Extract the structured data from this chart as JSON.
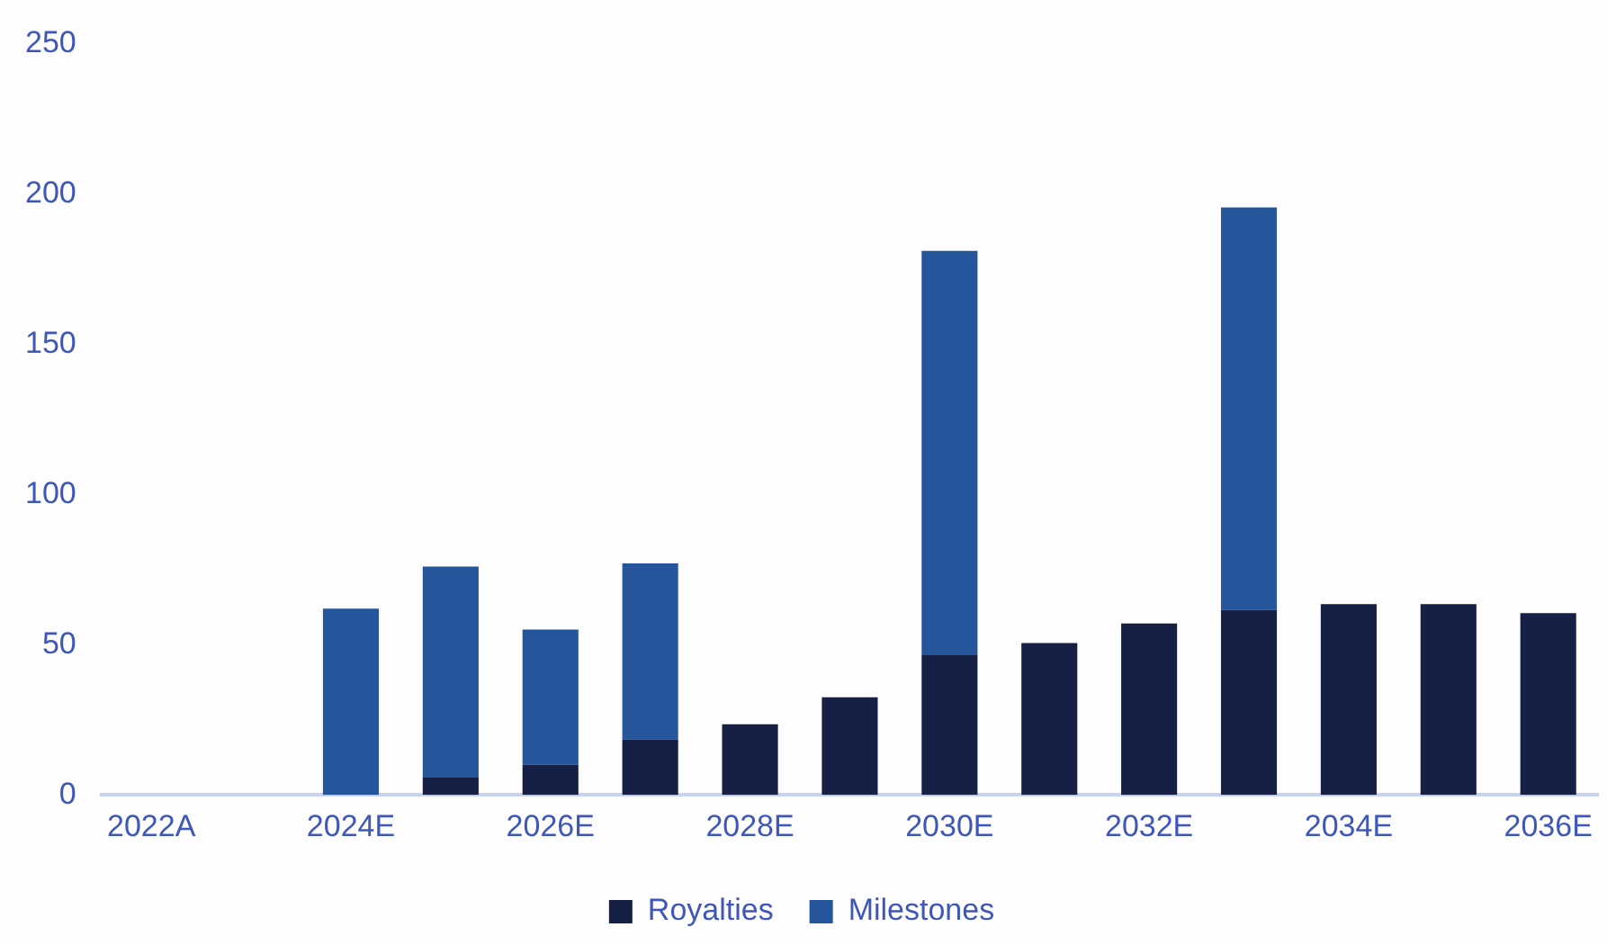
{
  "chart_data": {
    "type": "bar",
    "stacked": true,
    "categories": [
      "2022A",
      null,
      "2024E",
      null,
      "2026E",
      null,
      "2028E",
      null,
      "2030E",
      null,
      "2032E",
      null,
      "2034E",
      null,
      "2036E"
    ],
    "series": [
      {
        "name": "Royalties",
        "color": "#162044",
        "values": [
          0,
          0,
          0,
          6,
          10,
          18.5,
          23.5,
          32.5,
          46.5,
          50.5,
          57,
          61.5,
          63.5,
          63.5,
          60.5
        ]
      },
      {
        "name": "Milestones",
        "color": "#25569b",
        "values": [
          0,
          0,
          62,
          70,
          45,
          58.5,
          0,
          0,
          134.5,
          0,
          0,
          134,
          0,
          0,
          0
        ]
      }
    ],
    "ylim": [
      0,
      250
    ],
    "yticks": [
      0,
      50,
      100,
      150,
      200,
      250
    ],
    "grid": false,
    "legend": "bottom"
  }
}
